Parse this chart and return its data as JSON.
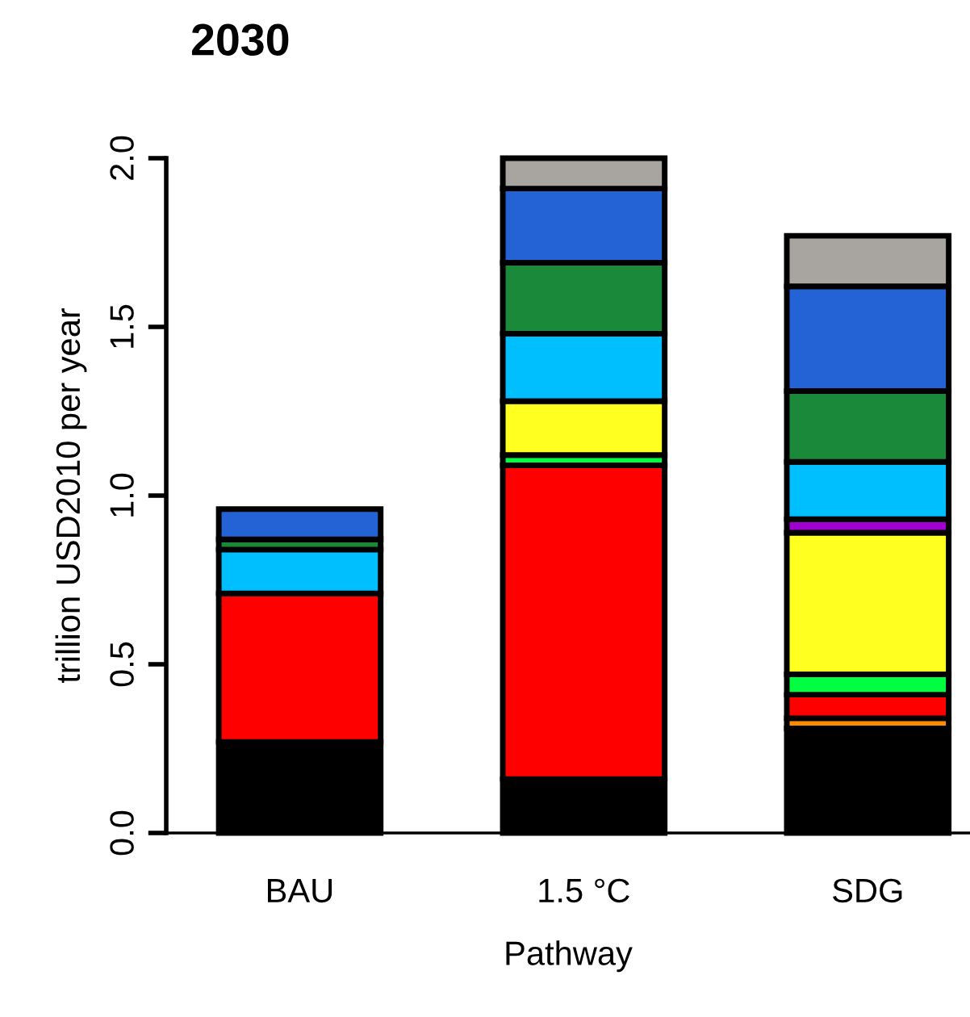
{
  "chart_data": {
    "type": "bar",
    "title": "2030",
    "xlabel": "Pathway",
    "ylabel": "trillion USD2010 per year",
    "categories": [
      "BAU",
      "1.5 °C",
      "SDG"
    ],
    "stacked": true,
    "ylim": [
      0,
      2
    ],
    "yticks": [
      {
        "value": 0,
        "label": "0.0"
      },
      0.5,
      {
        "value": 1,
        "label": "1.0"
      },
      1.5,
      {
        "value": 2,
        "label": "2.0"
      }
    ],
    "grid": false,
    "legend": false,
    "series": [
      {
        "color": "#000000",
        "values": [
          0.27,
          0.16,
          0.31
        ]
      },
      {
        "color": "#ff8c00",
        "values": [
          0,
          0,
          0.03
        ]
      },
      {
        "color": "#ff0000",
        "values": [
          0.44,
          0.93,
          0.07
        ]
      },
      {
        "color": "#00ff40",
        "values": [
          0,
          0.03,
          0.06
        ]
      },
      {
        "color": "#ffff20",
        "values": [
          0,
          0.16,
          0.42
        ]
      },
      {
        "color": "#a000d0",
        "values": [
          0,
          0,
          0.04
        ]
      },
      {
        "color": "#00bfff",
        "values": [
          0.13,
          0.2,
          0.17
        ]
      },
      {
        "color": "#1a8a3a",
        "values": [
          0.03,
          0.21,
          0.21
        ]
      },
      {
        "color": "#2463d6",
        "values": [
          0.09,
          0.22,
          0.31
        ]
      },
      {
        "color": "#a8a49f",
        "values": [
          0,
          0.09,
          0.15
        ]
      }
    ]
  }
}
